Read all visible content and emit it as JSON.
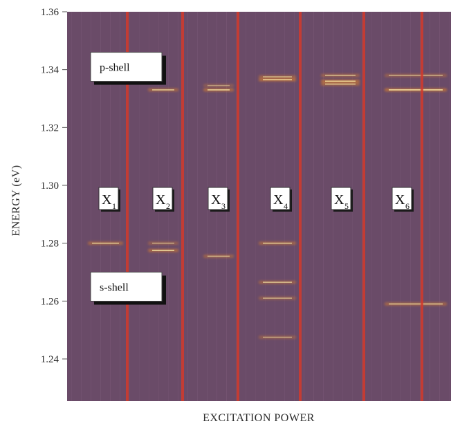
{
  "chart_data": {
    "type": "heatmap",
    "title": "",
    "xlabel": "EXCITATION POWER",
    "ylabel": "ENERGY (eV)",
    "ylim": [
      1.23,
      1.36
    ],
    "yticks": [
      "1.36",
      "1.34",
      "1.32",
      "1.30",
      "1.28",
      "1.26",
      "1.24"
    ],
    "grid": false,
    "colors": {
      "background": "#6a4b68",
      "divider": "#d23a2c",
      "line_core": "#fff3b0",
      "line_glow": "#f08a24",
      "label_box": "#ffffff",
      "label_shadow": "#111111"
    },
    "shell_labels": [
      {
        "text": "p-shell",
        "energy": 1.3405
      },
      {
        "text": "s-shell",
        "energy": 1.2645
      }
    ],
    "regions": [
      {
        "label": "X",
        "sub": "1"
      },
      {
        "label": "X",
        "sub": "2"
      },
      {
        "label": "X",
        "sub": "3"
      },
      {
        "label": "X",
        "sub": "4"
      },
      {
        "label": "X",
        "sub": "5"
      },
      {
        "label": "X",
        "sub": "6"
      }
    ],
    "region_label_energy": 1.2945,
    "emission_lines": [
      {
        "region": 1,
        "energy": 1.28,
        "intensity": 0.8
      },
      {
        "region": 2,
        "energy": 1.2775,
        "intensity": 0.9
      },
      {
        "region": 2,
        "energy": 1.28,
        "intensity": 0.6
      },
      {
        "region": 2,
        "energy": 1.333,
        "intensity": 0.8
      },
      {
        "region": 3,
        "energy": 1.2755,
        "intensity": 0.7
      },
      {
        "region": 3,
        "energy": 1.333,
        "intensity": 0.9
      },
      {
        "region": 3,
        "energy": 1.3345,
        "intensity": 0.5
      },
      {
        "region": 4,
        "energy": 1.28,
        "intensity": 0.8
      },
      {
        "region": 4,
        "energy": 1.2665,
        "intensity": 0.7
      },
      {
        "region": 4,
        "energy": 1.261,
        "intensity": 0.6
      },
      {
        "region": 4,
        "energy": 1.2475,
        "intensity": 0.6
      },
      {
        "region": 4,
        "energy": 1.3365,
        "intensity": 1.0
      },
      {
        "region": 4,
        "energy": 1.3375,
        "intensity": 0.7
      },
      {
        "region": 5,
        "energy": 1.336,
        "intensity": 1.0
      },
      {
        "region": 5,
        "energy": 1.338,
        "intensity": 0.7
      },
      {
        "region": 5,
        "energy": 1.335,
        "intensity": 0.8
      },
      {
        "region": 6,
        "energy": 1.259,
        "intensity": 0.8
      },
      {
        "region": 6,
        "energy": 1.333,
        "intensity": 1.0
      },
      {
        "region": 6,
        "energy": 1.338,
        "intensity": 0.6
      }
    ]
  }
}
